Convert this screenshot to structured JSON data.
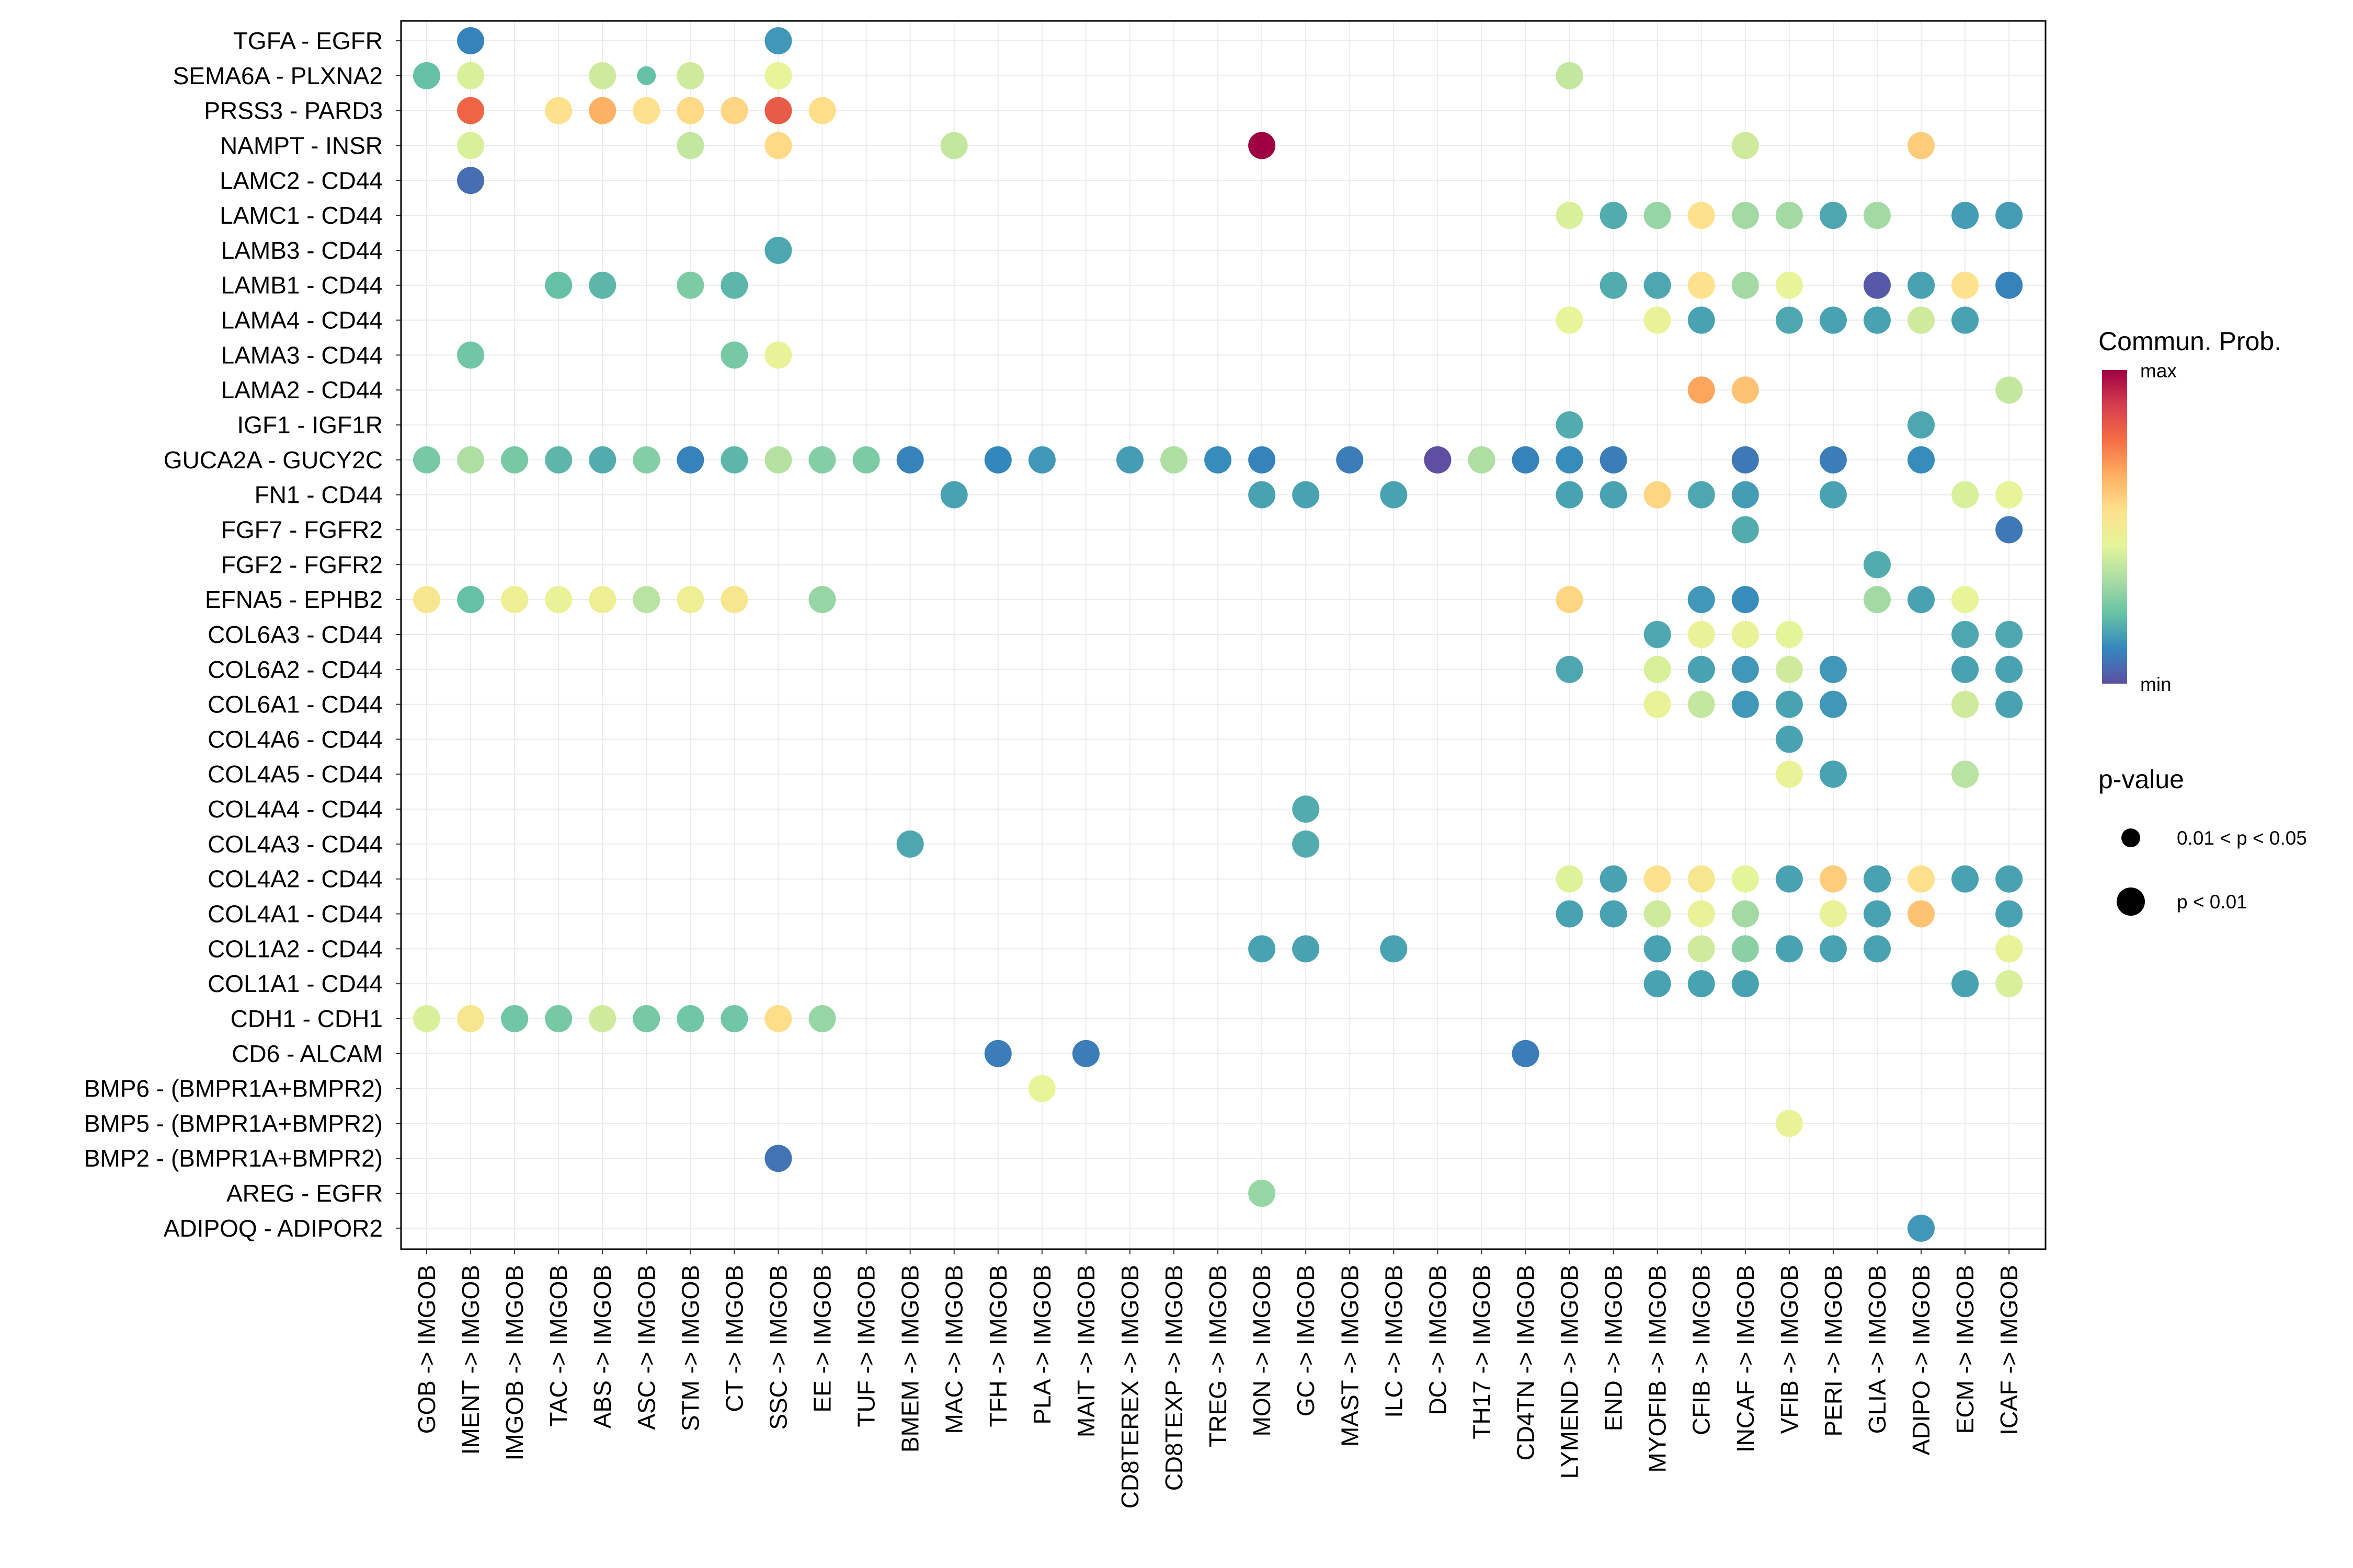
{
  "chart_data": {
    "type": "dotplot",
    "x_labels": [
      "GOB -> IMGOB",
      "IMENT -> IMGOB",
      "IMGOB -> IMGOB",
      "TAC -> IMGOB",
      "ABS -> IMGOB",
      "ASC -> IMGOB",
      "STM -> IMGOB",
      "CT -> IMGOB",
      "SSC -> IMGOB",
      "EE -> IMGOB",
      "TUF -> IMGOB",
      "BMEM -> IMGOB",
      "MAC -> IMGOB",
      "TFH -> IMGOB",
      "PLA -> IMGOB",
      "MAIT -> IMGOB",
      "CD8TEREX -> IMGOB",
      "CD8TEXP -> IMGOB",
      "TREG -> IMGOB",
      "MON -> IMGOB",
      "GC -> IMGOB",
      "MAST -> IMGOB",
      "ILC -> IMGOB",
      "DC -> IMGOB",
      "TH17 -> IMGOB",
      "CD4TN -> IMGOB",
      "LYMEND -> IMGOB",
      "END -> IMGOB",
      "MYOFIB -> IMGOB",
      "CFIB -> IMGOB",
      "INCAF -> IMGOB",
      "VFIB -> IMGOB",
      "PERI -> IMGOB",
      "GLIA -> IMGOB",
      "ADIPO -> IMGOB",
      "ECM -> IMGOB",
      "ICAF -> IMGOB"
    ],
    "y_labels": [
      "TGFA - EGFR",
      "SEMA6A - PLXNA2",
      "PRSS3 - PARD3",
      "NAMPT - INSR",
      "LAMC2 - CD44",
      "LAMC1 - CD44",
      "LAMB3 - CD44",
      "LAMB1 - CD44",
      "LAMA4 - CD44",
      "LAMA3 - CD44",
      "LAMA2 - CD44",
      "IGF1 - IGF1R",
      "GUCA2A - GUCY2C",
      "FN1 - CD44",
      "FGF7 - FGFR2",
      "FGF2 - FGFR2",
      "EFNA5 - EPHB2",
      "COL6A3 - CD44",
      "COL6A2 - CD44",
      "COL6A1 - CD44",
      "COL4A6 - CD44",
      "COL4A5 - CD44",
      "COL4A4 - CD44",
      "COL4A3 - CD44",
      "COL4A2 - CD44",
      "COL4A1 - CD44",
      "COL1A2 - CD44",
      "COL1A1 - CD44",
      "CDH1 - CDH1",
      "CD6 - ALCAM",
      "BMP6 - (BMPR1A+BMPR2)",
      "BMP5 - (BMPR1A+BMPR2)",
      "BMP2 - (BMPR1A+BMPR2)",
      "AREG - EGFR",
      "ADIPOQ - ADIPOR2"
    ],
    "points": [
      [
        1,
        0,
        0.1,
        2
      ],
      [
        8,
        0,
        0.14,
        2
      ],
      [
        0,
        1,
        0.22,
        2
      ],
      [
        1,
        1,
        0.42,
        2
      ],
      [
        4,
        1,
        0.4,
        2
      ],
      [
        5,
        1,
        0.22,
        1
      ],
      [
        6,
        1,
        0.4,
        2
      ],
      [
        8,
        1,
        0.45,
        2
      ],
      [
        26,
        1,
        0.38,
        2
      ],
      [
        1,
        2,
        0.8,
        2
      ],
      [
        3,
        2,
        0.55,
        2
      ],
      [
        4,
        2,
        0.66,
        2
      ],
      [
        5,
        2,
        0.55,
        2
      ],
      [
        6,
        2,
        0.57,
        2
      ],
      [
        7,
        2,
        0.58,
        2
      ],
      [
        8,
        2,
        0.82,
        2
      ],
      [
        9,
        2,
        0.56,
        2
      ],
      [
        1,
        3,
        0.42,
        2
      ],
      [
        6,
        3,
        0.38,
        2
      ],
      [
        8,
        3,
        0.57,
        2
      ],
      [
        12,
        3,
        0.38,
        2
      ],
      [
        19,
        3,
        1.0,
        2
      ],
      [
        30,
        3,
        0.4,
        2
      ],
      [
        34,
        3,
        0.6,
        2
      ],
      [
        1,
        4,
        0.06,
        2
      ],
      [
        26,
        5,
        0.42,
        2
      ],
      [
        27,
        5,
        0.18,
        2
      ],
      [
        28,
        5,
        0.3,
        2
      ],
      [
        29,
        5,
        0.55,
        2
      ],
      [
        30,
        5,
        0.32,
        2
      ],
      [
        31,
        5,
        0.32,
        2
      ],
      [
        32,
        5,
        0.17,
        2
      ],
      [
        33,
        5,
        0.32,
        2
      ],
      [
        35,
        5,
        0.15,
        2
      ],
      [
        36,
        5,
        0.15,
        2
      ],
      [
        8,
        6,
        0.17,
        2
      ],
      [
        3,
        7,
        0.22,
        2
      ],
      [
        4,
        7,
        0.2,
        2
      ],
      [
        6,
        7,
        0.26,
        2
      ],
      [
        7,
        7,
        0.2,
        2
      ],
      [
        27,
        7,
        0.18,
        2
      ],
      [
        28,
        7,
        0.17,
        2
      ],
      [
        29,
        7,
        0.55,
        2
      ],
      [
        30,
        7,
        0.32,
        2
      ],
      [
        31,
        7,
        0.45,
        2
      ],
      [
        33,
        7,
        0.02,
        2
      ],
      [
        34,
        7,
        0.16,
        2
      ],
      [
        35,
        7,
        0.55,
        2
      ],
      [
        36,
        7,
        0.1,
        2
      ],
      [
        26,
        8,
        0.45,
        2
      ],
      [
        28,
        8,
        0.46,
        2
      ],
      [
        29,
        8,
        0.16,
        2
      ],
      [
        31,
        8,
        0.17,
        2
      ],
      [
        32,
        8,
        0.16,
        2
      ],
      [
        33,
        8,
        0.16,
        2
      ],
      [
        34,
        8,
        0.4,
        2
      ],
      [
        35,
        8,
        0.16,
        2
      ],
      [
        1,
        9,
        0.24,
        2
      ],
      [
        7,
        9,
        0.25,
        2
      ],
      [
        8,
        9,
        0.46,
        2
      ],
      [
        29,
        10,
        0.68,
        2
      ],
      [
        30,
        10,
        0.62,
        2
      ],
      [
        36,
        10,
        0.38,
        2
      ],
      [
        26,
        11,
        0.18,
        2
      ],
      [
        34,
        11,
        0.17,
        2
      ],
      [
        0,
        12,
        0.25,
        2
      ],
      [
        1,
        12,
        0.34,
        2
      ],
      [
        2,
        12,
        0.25,
        2
      ],
      [
        3,
        12,
        0.2,
        2
      ],
      [
        4,
        12,
        0.18,
        2
      ],
      [
        5,
        12,
        0.27,
        2
      ],
      [
        6,
        12,
        0.1,
        2
      ],
      [
        7,
        12,
        0.2,
        2
      ],
      [
        8,
        12,
        0.35,
        2
      ],
      [
        9,
        12,
        0.27,
        2
      ],
      [
        10,
        12,
        0.26,
        2
      ],
      [
        11,
        12,
        0.1,
        2
      ],
      [
        13,
        12,
        0.11,
        2
      ],
      [
        14,
        12,
        0.14,
        2
      ],
      [
        16,
        12,
        0.15,
        2
      ],
      [
        17,
        12,
        0.34,
        2
      ],
      [
        18,
        12,
        0.12,
        2
      ],
      [
        19,
        12,
        0.1,
        2
      ],
      [
        21,
        12,
        0.09,
        2
      ],
      [
        23,
        12,
        0.0,
        2
      ],
      [
        24,
        12,
        0.34,
        2
      ],
      [
        25,
        12,
        0.1,
        2
      ],
      [
        26,
        12,
        0.12,
        2
      ],
      [
        27,
        12,
        0.09,
        2
      ],
      [
        30,
        12,
        0.08,
        2
      ],
      [
        32,
        12,
        0.09,
        2
      ],
      [
        34,
        12,
        0.12,
        2
      ],
      [
        12,
        13,
        0.16,
        2
      ],
      [
        19,
        13,
        0.16,
        2
      ],
      [
        20,
        13,
        0.16,
        2
      ],
      [
        22,
        13,
        0.16,
        2
      ],
      [
        26,
        13,
        0.16,
        2
      ],
      [
        27,
        13,
        0.16,
        2
      ],
      [
        28,
        13,
        0.58,
        2
      ],
      [
        29,
        13,
        0.17,
        2
      ],
      [
        30,
        13,
        0.15,
        2
      ],
      [
        32,
        13,
        0.16,
        2
      ],
      [
        35,
        13,
        0.42,
        2
      ],
      [
        36,
        13,
        0.45,
        2
      ],
      [
        30,
        14,
        0.18,
        2
      ],
      [
        36,
        14,
        0.08,
        2
      ],
      [
        33,
        15,
        0.18,
        2
      ],
      [
        0,
        16,
        0.52,
        2
      ],
      [
        1,
        16,
        0.22,
        2
      ],
      [
        2,
        16,
        0.48,
        2
      ],
      [
        3,
        16,
        0.46,
        2
      ],
      [
        4,
        16,
        0.48,
        2
      ],
      [
        5,
        16,
        0.36,
        2
      ],
      [
        6,
        16,
        0.48,
        2
      ],
      [
        7,
        16,
        0.52,
        2
      ],
      [
        9,
        16,
        0.3,
        2
      ],
      [
        26,
        16,
        0.58,
        2
      ],
      [
        29,
        16,
        0.14,
        2
      ],
      [
        30,
        16,
        0.12,
        2
      ],
      [
        33,
        16,
        0.32,
        2
      ],
      [
        34,
        16,
        0.16,
        2
      ],
      [
        35,
        16,
        0.45,
        2
      ],
      [
        28,
        17,
        0.17,
        2
      ],
      [
        29,
        17,
        0.46,
        2
      ],
      [
        30,
        17,
        0.46,
        2
      ],
      [
        31,
        17,
        0.44,
        2
      ],
      [
        35,
        17,
        0.17,
        2
      ],
      [
        36,
        17,
        0.17,
        2
      ],
      [
        26,
        18,
        0.17,
        2
      ],
      [
        28,
        18,
        0.42,
        2
      ],
      [
        29,
        18,
        0.16,
        2
      ],
      [
        30,
        18,
        0.14,
        2
      ],
      [
        31,
        18,
        0.4,
        2
      ],
      [
        32,
        18,
        0.14,
        2
      ],
      [
        35,
        18,
        0.16,
        2
      ],
      [
        36,
        18,
        0.16,
        2
      ],
      [
        28,
        19,
        0.46,
        2
      ],
      [
        29,
        19,
        0.38,
        2
      ],
      [
        30,
        19,
        0.14,
        2
      ],
      [
        31,
        19,
        0.16,
        2
      ],
      [
        32,
        19,
        0.14,
        2
      ],
      [
        35,
        19,
        0.4,
        2
      ],
      [
        36,
        19,
        0.16,
        2
      ],
      [
        31,
        20,
        0.16,
        2
      ],
      [
        31,
        21,
        0.46,
        2
      ],
      [
        32,
        21,
        0.16,
        2
      ],
      [
        35,
        21,
        0.36,
        2
      ],
      [
        20,
        22,
        0.18,
        2
      ],
      [
        11,
        23,
        0.17,
        2
      ],
      [
        20,
        23,
        0.18,
        2
      ],
      [
        26,
        24,
        0.43,
        2
      ],
      [
        27,
        24,
        0.16,
        2
      ],
      [
        28,
        24,
        0.55,
        2
      ],
      [
        29,
        24,
        0.52,
        2
      ],
      [
        30,
        24,
        0.44,
        2
      ],
      [
        31,
        24,
        0.16,
        2
      ],
      [
        32,
        24,
        0.6,
        2
      ],
      [
        33,
        24,
        0.16,
        2
      ],
      [
        34,
        24,
        0.55,
        2
      ],
      [
        35,
        24,
        0.16,
        2
      ],
      [
        36,
        24,
        0.16,
        2
      ],
      [
        26,
        25,
        0.16,
        2
      ],
      [
        27,
        25,
        0.16,
        2
      ],
      [
        28,
        25,
        0.4,
        2
      ],
      [
        29,
        25,
        0.46,
        2
      ],
      [
        30,
        25,
        0.32,
        2
      ],
      [
        32,
        25,
        0.46,
        2
      ],
      [
        33,
        25,
        0.16,
        2
      ],
      [
        34,
        25,
        0.62,
        2
      ],
      [
        36,
        25,
        0.16,
        2
      ],
      [
        19,
        26,
        0.16,
        2
      ],
      [
        20,
        26,
        0.16,
        2
      ],
      [
        22,
        26,
        0.16,
        2
      ],
      [
        28,
        26,
        0.16,
        2
      ],
      [
        29,
        26,
        0.4,
        2
      ],
      [
        30,
        26,
        0.28,
        2
      ],
      [
        31,
        26,
        0.16,
        2
      ],
      [
        32,
        26,
        0.16,
        2
      ],
      [
        33,
        26,
        0.16,
        2
      ],
      [
        36,
        26,
        0.46,
        2
      ],
      [
        28,
        27,
        0.16,
        2
      ],
      [
        29,
        27,
        0.16,
        2
      ],
      [
        30,
        27,
        0.16,
        2
      ],
      [
        35,
        27,
        0.16,
        2
      ],
      [
        36,
        27,
        0.42,
        2
      ],
      [
        0,
        28,
        0.42,
        2
      ],
      [
        1,
        28,
        0.52,
        2
      ],
      [
        2,
        28,
        0.24,
        2
      ],
      [
        3,
        28,
        0.25,
        2
      ],
      [
        4,
        28,
        0.4,
        2
      ],
      [
        5,
        28,
        0.25,
        2
      ],
      [
        6,
        28,
        0.24,
        2
      ],
      [
        7,
        28,
        0.24,
        2
      ],
      [
        8,
        28,
        0.56,
        2
      ],
      [
        9,
        28,
        0.3,
        2
      ],
      [
        13,
        29,
        0.09,
        2
      ],
      [
        15,
        29,
        0.09,
        2
      ],
      [
        25,
        29,
        0.09,
        2
      ],
      [
        14,
        30,
        0.45,
        2
      ],
      [
        31,
        31,
        0.46,
        2
      ],
      [
        8,
        32,
        0.07,
        2
      ],
      [
        19,
        33,
        0.3,
        2
      ],
      [
        34,
        34,
        0.14,
        2
      ]
    ],
    "xlabel": "",
    "ylabel": "",
    "color_legend": {
      "title": "Commun. Prob.",
      "max_label": "max",
      "min_label": "min"
    },
    "size_legend": {
      "title": "p-value",
      "entries": [
        {
          "label": "0.01 < p < 0.05",
          "level": 1
        },
        {
          "label": "p < 0.01",
          "level": 2
        }
      ]
    },
    "colors": {
      "min": "#5E4FA2",
      "max": "#9E0142"
    }
  }
}
